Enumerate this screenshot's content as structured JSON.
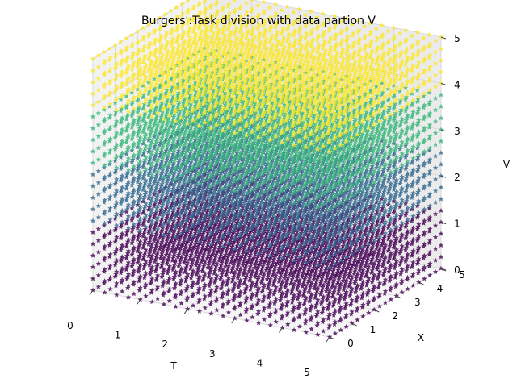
{
  "chart_data": {
    "type": "scatter",
    "projection": "3d",
    "title": "Burgers':Task division with data partion V",
    "xlabel": "T",
    "ylabel": "X",
    "zlabel": "V",
    "xlim": [
      0,
      5
    ],
    "ylim": [
      0,
      5
    ],
    "zlim": [
      0,
      5
    ],
    "xticks": [
      "0",
      "1",
      "2",
      "3",
      "4",
      "5"
    ],
    "yticks": [
      "0",
      "1",
      "2",
      "3",
      "4",
      "5"
    ],
    "zticks": [
      "0",
      "1",
      "2",
      "3",
      "4",
      "5"
    ],
    "grid": true,
    "marker": "star",
    "colormap": "viridis",
    "grid_points": {
      "t_count": 21,
      "x_count": 21,
      "v_count": 21,
      "range": [
        0,
        5
      ]
    },
    "partitions": [
      {
        "v_range": [
          0,
          1.25
        ],
        "color": "#440154"
      },
      {
        "v_range": [
          1.25,
          2.5
        ],
        "color": "#31688e"
      },
      {
        "v_range": [
          2.5,
          3.75
        ],
        "color": "#35b779"
      },
      {
        "v_range": [
          3.75,
          5
        ],
        "color": "#fde725"
      }
    ]
  }
}
